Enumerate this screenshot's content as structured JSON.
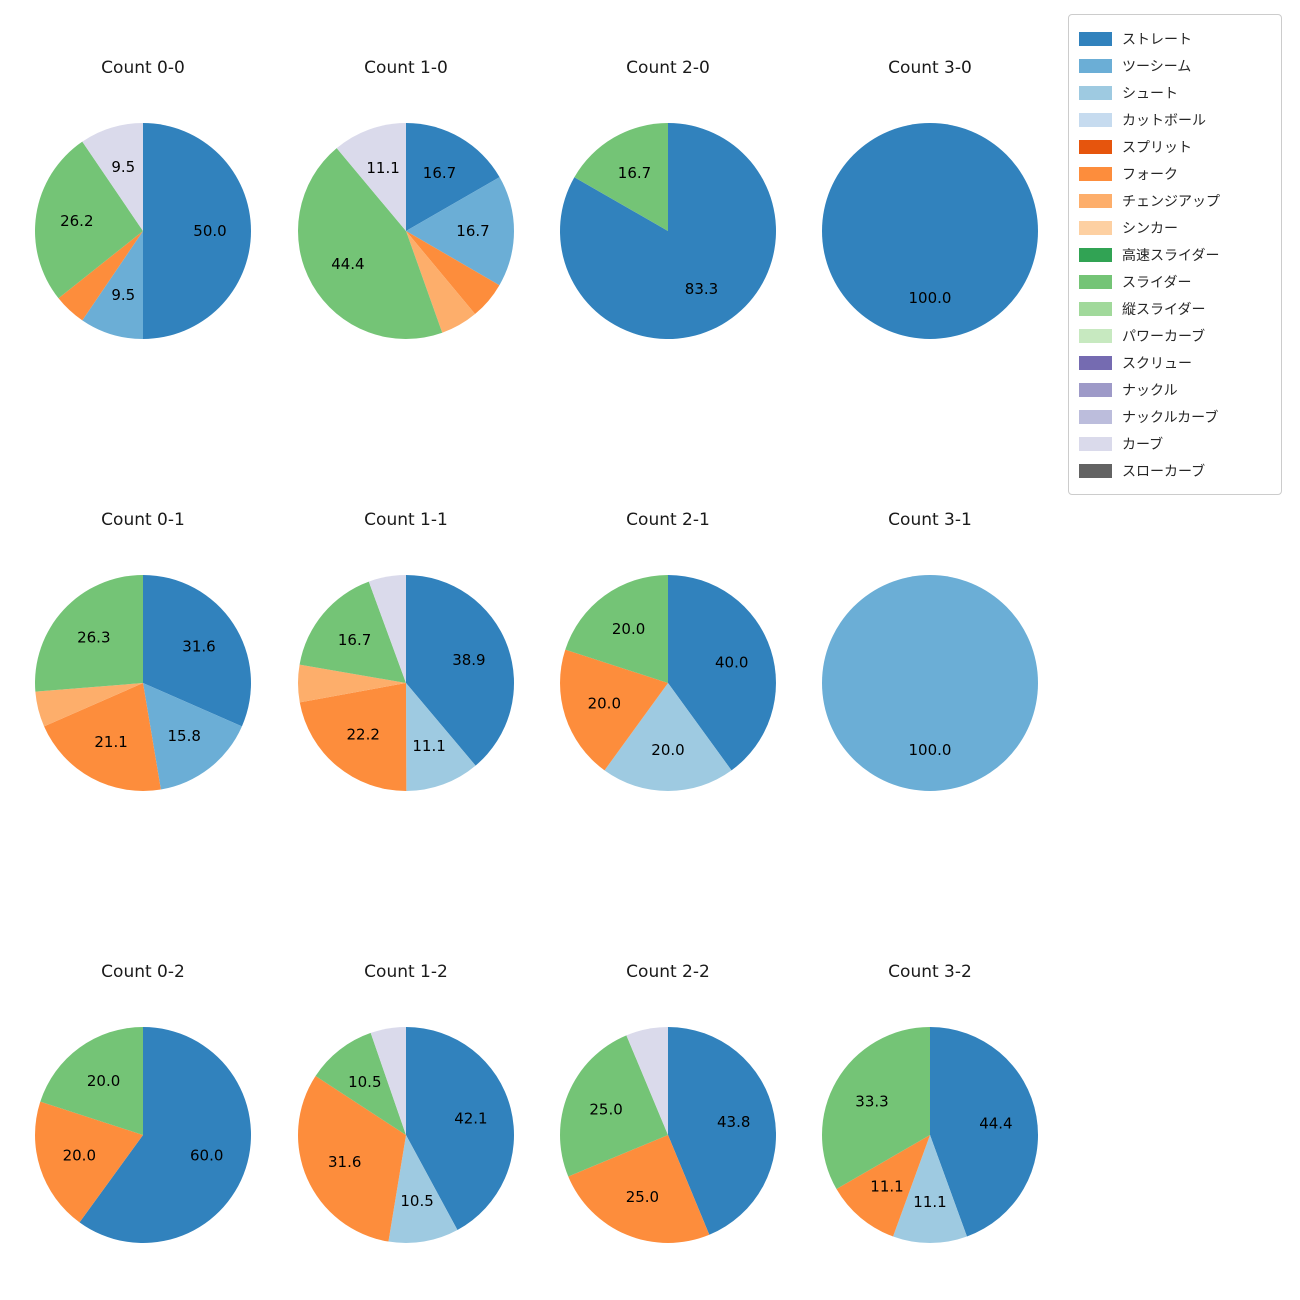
{
  "palette": {
    "ストレート": "#3182bd",
    "ツーシーム": "#6baed6",
    "シュート": "#9ecae1",
    "カットボール": "#c6dbef",
    "スプリット": "#e6550d",
    "フォーク": "#fd8d3c",
    "チェンジアップ": "#fdae6b",
    "シンカー": "#fdd0a2",
    "高速スライダー": "#31a354",
    "スライダー": "#74c476",
    "縦スライダー": "#a1d99b",
    "パワーカーブ": "#c7e9c0",
    "スクリュー": "#756bb1",
    "ナックル": "#9e9ac8",
    "ナックルカーブ": "#bcbddc",
    "カーブ": "#dadaeb",
    "スローカーブ": "#636363"
  },
  "legend": {
    "items": [
      "ストレート",
      "ツーシーム",
      "シュート",
      "カットボール",
      "スプリット",
      "フォーク",
      "チェンジアップ",
      "シンカー",
      "高速スライダー",
      "スライダー",
      "縦スライダー",
      "パワーカーブ",
      "スクリュー",
      "ナックル",
      "ナックルカーブ",
      "カーブ",
      "スローカーブ"
    ]
  },
  "chart_data": [
    {
      "type": "pie",
      "title": "Count 0-0",
      "start_angle": 90,
      "direction": "clockwise",
      "slices": [
        {
          "label": "ストレート",
          "value": 50.0,
          "show": true
        },
        {
          "label": "ツーシーム",
          "value": 9.5,
          "show": true
        },
        {
          "label": "フォーク",
          "value": 4.8,
          "show": false
        },
        {
          "label": "スライダー",
          "value": 26.2,
          "show": true
        },
        {
          "label": "カーブ",
          "value": 9.5,
          "show": true
        }
      ]
    },
    {
      "type": "pie",
      "title": "Count 1-0",
      "start_angle": 90,
      "direction": "clockwise",
      "slices": [
        {
          "label": "ストレート",
          "value": 16.7,
          "show": true
        },
        {
          "label": "ツーシーム",
          "value": 16.7,
          "show": true
        },
        {
          "label": "フォーク",
          "value": 5.6,
          "show": false
        },
        {
          "label": "チェンジアップ",
          "value": 5.6,
          "show": false
        },
        {
          "label": "スライダー",
          "value": 44.4,
          "show": true
        },
        {
          "label": "カーブ",
          "value": 11.1,
          "show": true
        }
      ]
    },
    {
      "type": "pie",
      "title": "Count 2-0",
      "start_angle": 90,
      "direction": "clockwise",
      "slices": [
        {
          "label": "ストレート",
          "value": 83.3,
          "show": true
        },
        {
          "label": "スライダー",
          "value": 16.7,
          "show": true
        }
      ]
    },
    {
      "type": "pie",
      "title": "Count 3-0",
      "start_angle": 90,
      "direction": "clockwise",
      "slices": [
        {
          "label": "ストレート",
          "value": 100.0,
          "show": true
        }
      ]
    },
    {
      "type": "pie",
      "title": "Count 0-1",
      "start_angle": 90,
      "direction": "clockwise",
      "slices": [
        {
          "label": "ストレート",
          "value": 31.6,
          "show": true
        },
        {
          "label": "ツーシーム",
          "value": 15.8,
          "show": true
        },
        {
          "label": "フォーク",
          "value": 21.1,
          "show": true
        },
        {
          "label": "チェンジアップ",
          "value": 5.3,
          "show": false
        },
        {
          "label": "スライダー",
          "value": 26.3,
          "show": true
        }
      ]
    },
    {
      "type": "pie",
      "title": "Count 1-1",
      "start_angle": 90,
      "direction": "clockwise",
      "slices": [
        {
          "label": "ストレート",
          "value": 38.9,
          "show": true
        },
        {
          "label": "シュート",
          "value": 11.1,
          "show": true
        },
        {
          "label": "フォーク",
          "value": 22.2,
          "show": true
        },
        {
          "label": "チェンジアップ",
          "value": 5.6,
          "show": false
        },
        {
          "label": "スライダー",
          "value": 16.7,
          "show": true
        },
        {
          "label": "カーブ",
          "value": 5.6,
          "show": false
        }
      ]
    },
    {
      "type": "pie",
      "title": "Count 2-1",
      "start_angle": 90,
      "direction": "clockwise",
      "slices": [
        {
          "label": "ストレート",
          "value": 40.0,
          "show": true
        },
        {
          "label": "シュート",
          "value": 20.0,
          "show": true
        },
        {
          "label": "フォーク",
          "value": 20.0,
          "show": true
        },
        {
          "label": "スライダー",
          "value": 20.0,
          "show": true
        }
      ]
    },
    {
      "type": "pie",
      "title": "Count 3-1",
      "start_angle": 90,
      "direction": "clockwise",
      "slices": [
        {
          "label": "ツーシーム",
          "value": 100.0,
          "show": true
        }
      ]
    },
    {
      "type": "pie",
      "title": "Count 0-2",
      "start_angle": 90,
      "direction": "clockwise",
      "slices": [
        {
          "label": "ストレート",
          "value": 60.0,
          "show": true
        },
        {
          "label": "フォーク",
          "value": 20.0,
          "show": true
        },
        {
          "label": "スライダー",
          "value": 20.0,
          "show": true
        }
      ]
    },
    {
      "type": "pie",
      "title": "Count 1-2",
      "start_angle": 90,
      "direction": "clockwise",
      "slices": [
        {
          "label": "ストレート",
          "value": 42.1,
          "show": true
        },
        {
          "label": "シュート",
          "value": 10.5,
          "show": true
        },
        {
          "label": "フォーク",
          "value": 31.6,
          "show": true
        },
        {
          "label": "スライダー",
          "value": 10.5,
          "show": true
        },
        {
          "label": "カーブ",
          "value": 5.3,
          "show": false
        }
      ]
    },
    {
      "type": "pie",
      "title": "Count 2-2",
      "start_angle": 90,
      "direction": "clockwise",
      "slices": [
        {
          "label": "ストレート",
          "value": 43.8,
          "show": true
        },
        {
          "label": "フォーク",
          "value": 25.0,
          "show": true
        },
        {
          "label": "スライダー",
          "value": 25.0,
          "show": true
        },
        {
          "label": "カーブ",
          "value": 6.3,
          "show": false
        }
      ]
    },
    {
      "type": "pie",
      "title": "Count 3-2",
      "start_angle": 90,
      "direction": "clockwise",
      "slices": [
        {
          "label": "ストレート",
          "value": 44.4,
          "show": true
        },
        {
          "label": "シュート",
          "value": 11.1,
          "show": true
        },
        {
          "label": "フォーク",
          "value": 11.1,
          "show": true
        },
        {
          "label": "スライダー",
          "value": 33.3,
          "show": true
        }
      ]
    }
  ]
}
